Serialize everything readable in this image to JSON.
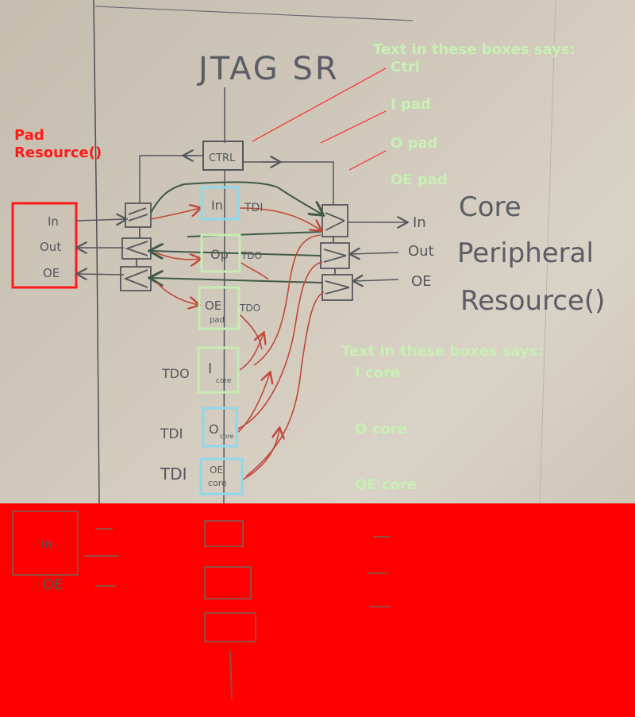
{
  "sketch": {
    "title": "JTAG SR",
    "ctrl_label": "CTRL",
    "pad_labels": [
      "In",
      "Out",
      "OE"
    ],
    "core_side_labels": [
      "In",
      "Out",
      "OE"
    ],
    "core_title_lines": [
      "Core",
      "Peripheral",
      "Resource()"
    ],
    "chain_boxes": [
      {
        "line1": "In",
        "line2": ""
      },
      {
        "line1": "Op",
        "line2": ""
      },
      {
        "line1": "OE",
        "line2": "pad"
      },
      {
        "line1": "I",
        "line2": "core"
      },
      {
        "line1": "O",
        "line2": "core"
      },
      {
        "line1": "OE",
        "line2": "core"
      }
    ],
    "tdi_tdo_labels": [
      "TDI",
      "TDO",
      "TDO",
      "TDO",
      "TDI",
      "TDI"
    ],
    "bottom_pad_labels": [
      "In",
      "OE"
    ]
  },
  "annotations": {
    "pad_resource_lines": [
      "Pad",
      "Resource()"
    ],
    "top_heading": "Text in these boxes says:",
    "top_items": [
      "Ctrl",
      "I pad",
      "O pad",
      "OE pad"
    ],
    "lower_heading": "Text in these boxes says:",
    "lower_items": [
      "I core",
      "O core",
      "OE core"
    ]
  },
  "colors": {
    "annotation_green": "#c8f0b4",
    "annotation_red": "#ff1a1a",
    "box_blue": "#8fd8ec",
    "box_green": "#c4ecb4",
    "wire_green": "#3f5a46",
    "wire_red": "#c0473a",
    "ink": "#55575e",
    "redact": "#ff0000"
  }
}
